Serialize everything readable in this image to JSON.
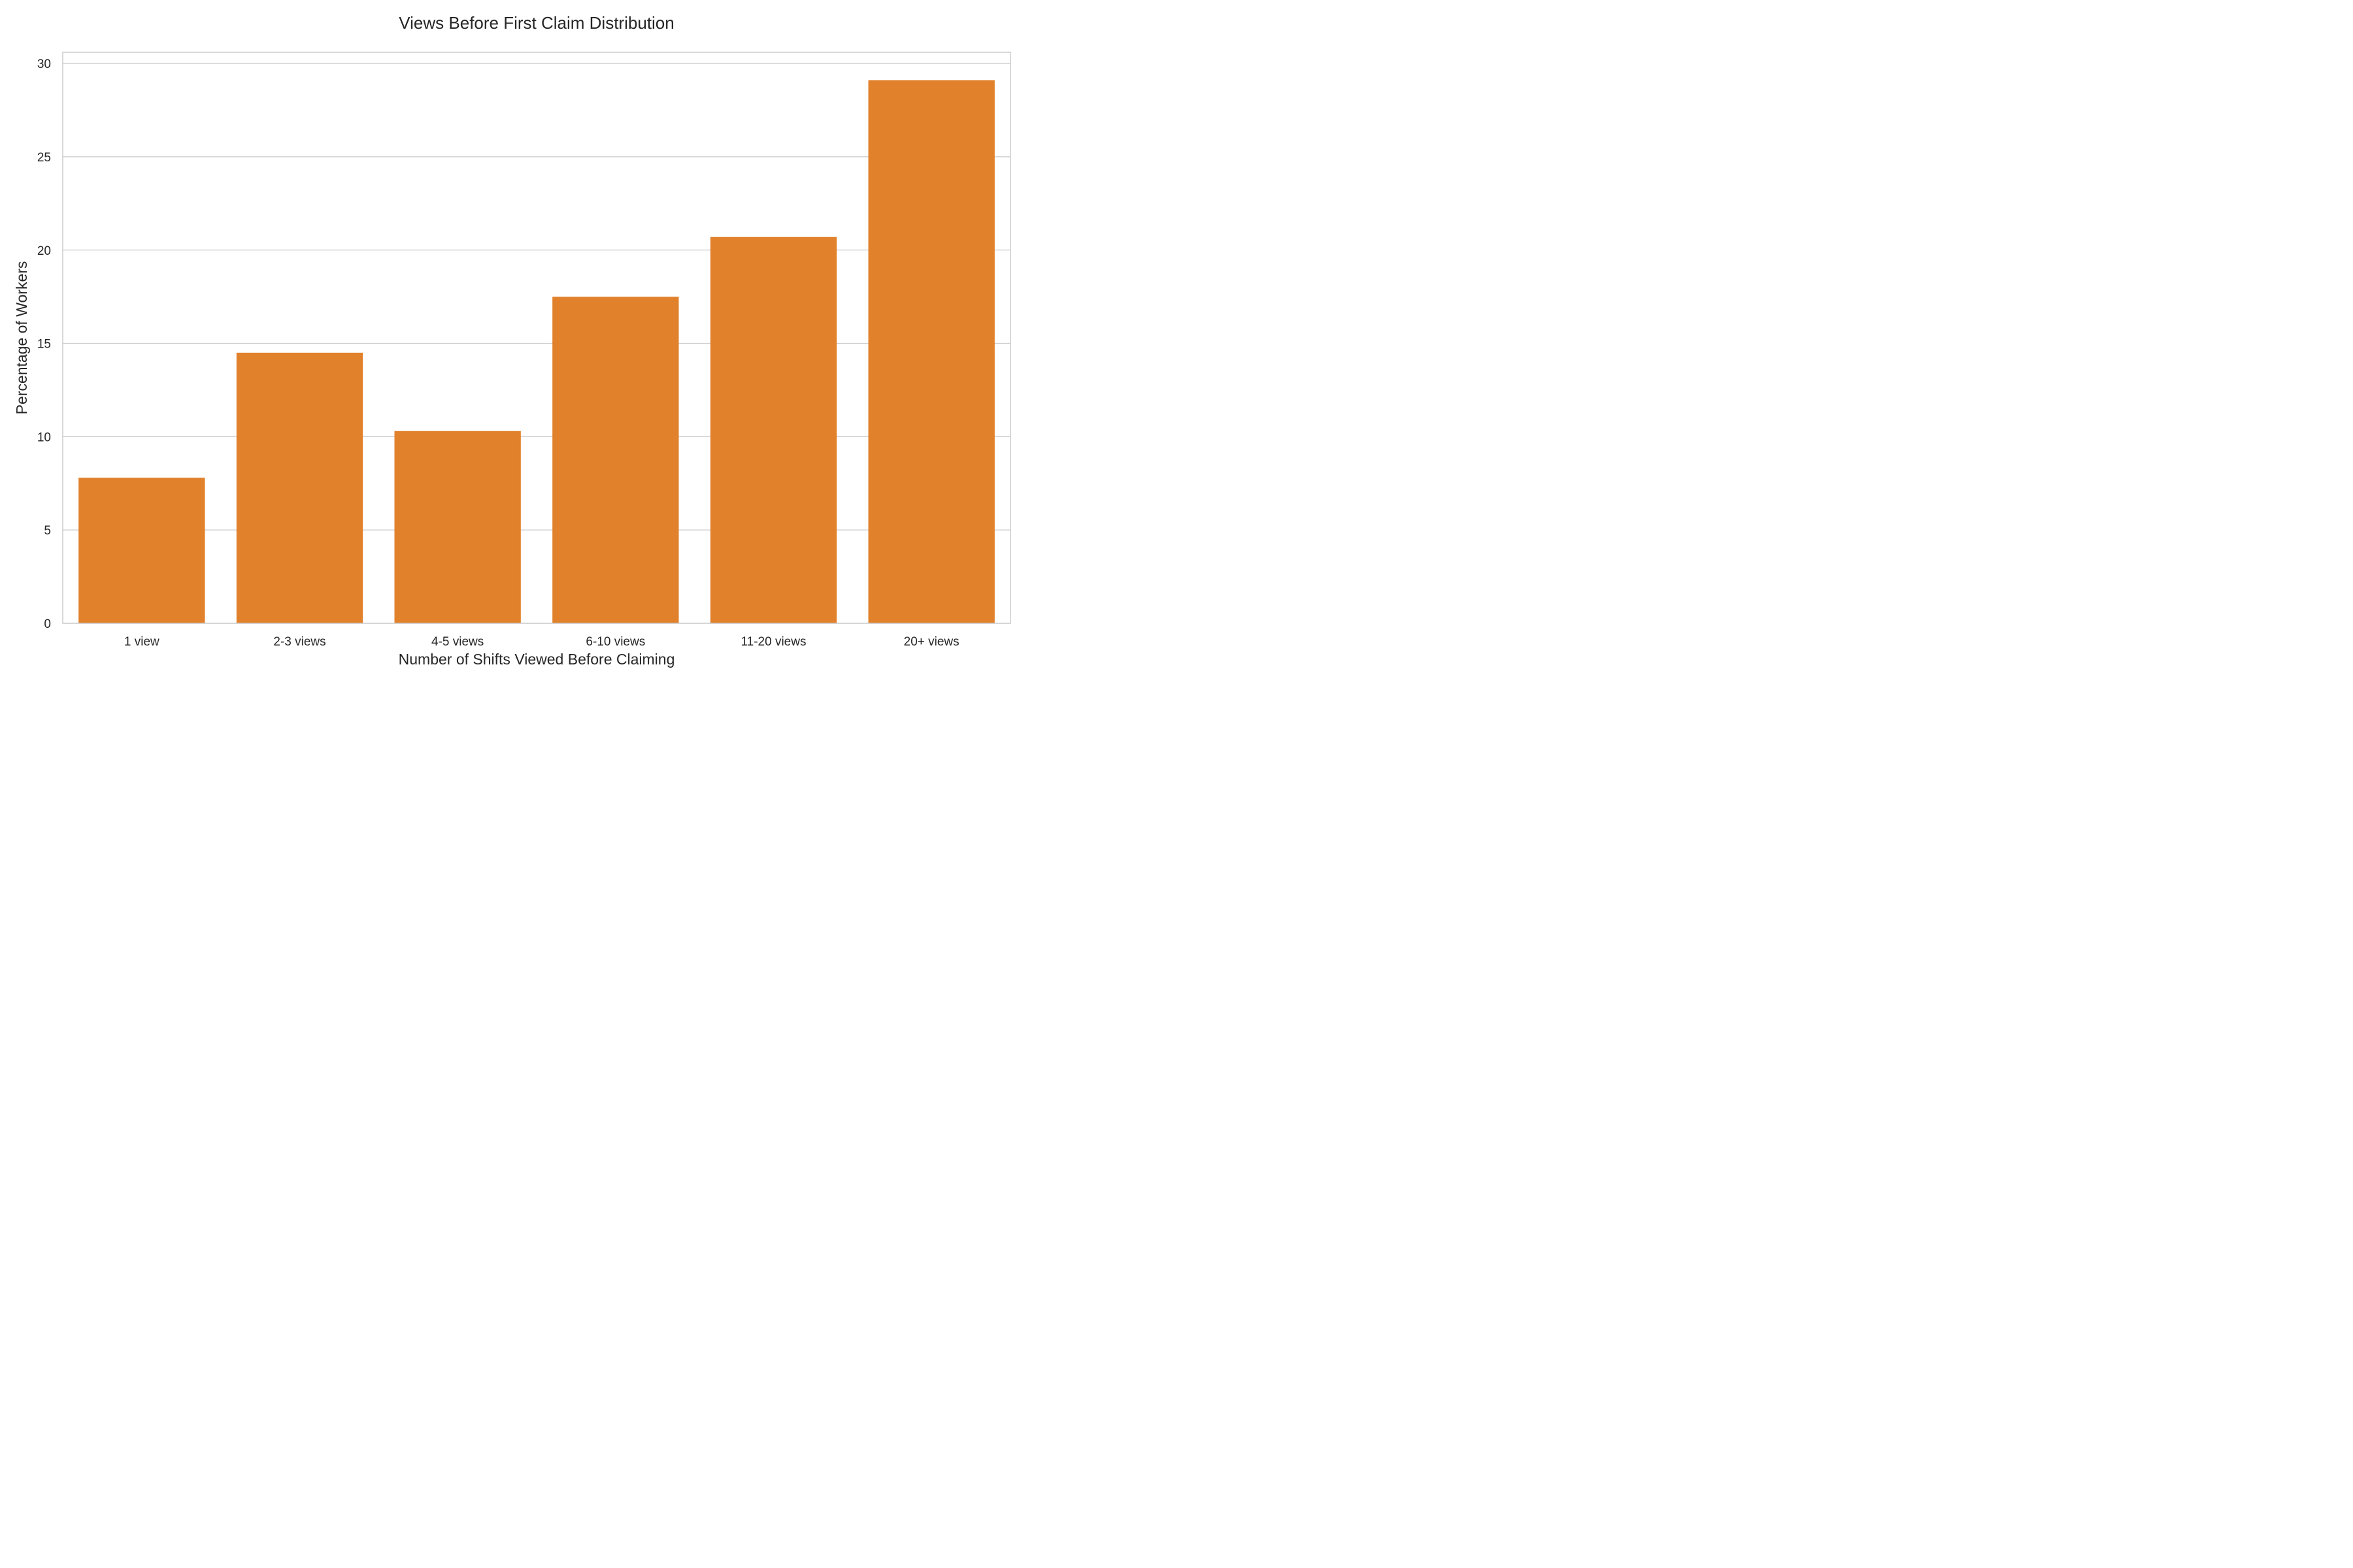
{
  "chart_data": {
    "type": "bar",
    "title": "Views Before First Claim Distribution",
    "xlabel": "Number of Shifts Viewed Before Claiming",
    "ylabel": "Percentage of Workers",
    "categories": [
      "1 view",
      "2-3 views",
      "4-5 views",
      "6-10 views",
      "11-20 views",
      "20+ views"
    ],
    "values": [
      7.8,
      14.5,
      10.3,
      17.5,
      20.7,
      29.1
    ],
    "ylim": [
      0,
      30.6
    ],
    "yticks": [
      0,
      5,
      10,
      15,
      20,
      25,
      30
    ],
    "grid": "horizontal",
    "bar_color": "#e1812c",
    "grid_color": "#cccccc",
    "text_color": "#262626"
  }
}
